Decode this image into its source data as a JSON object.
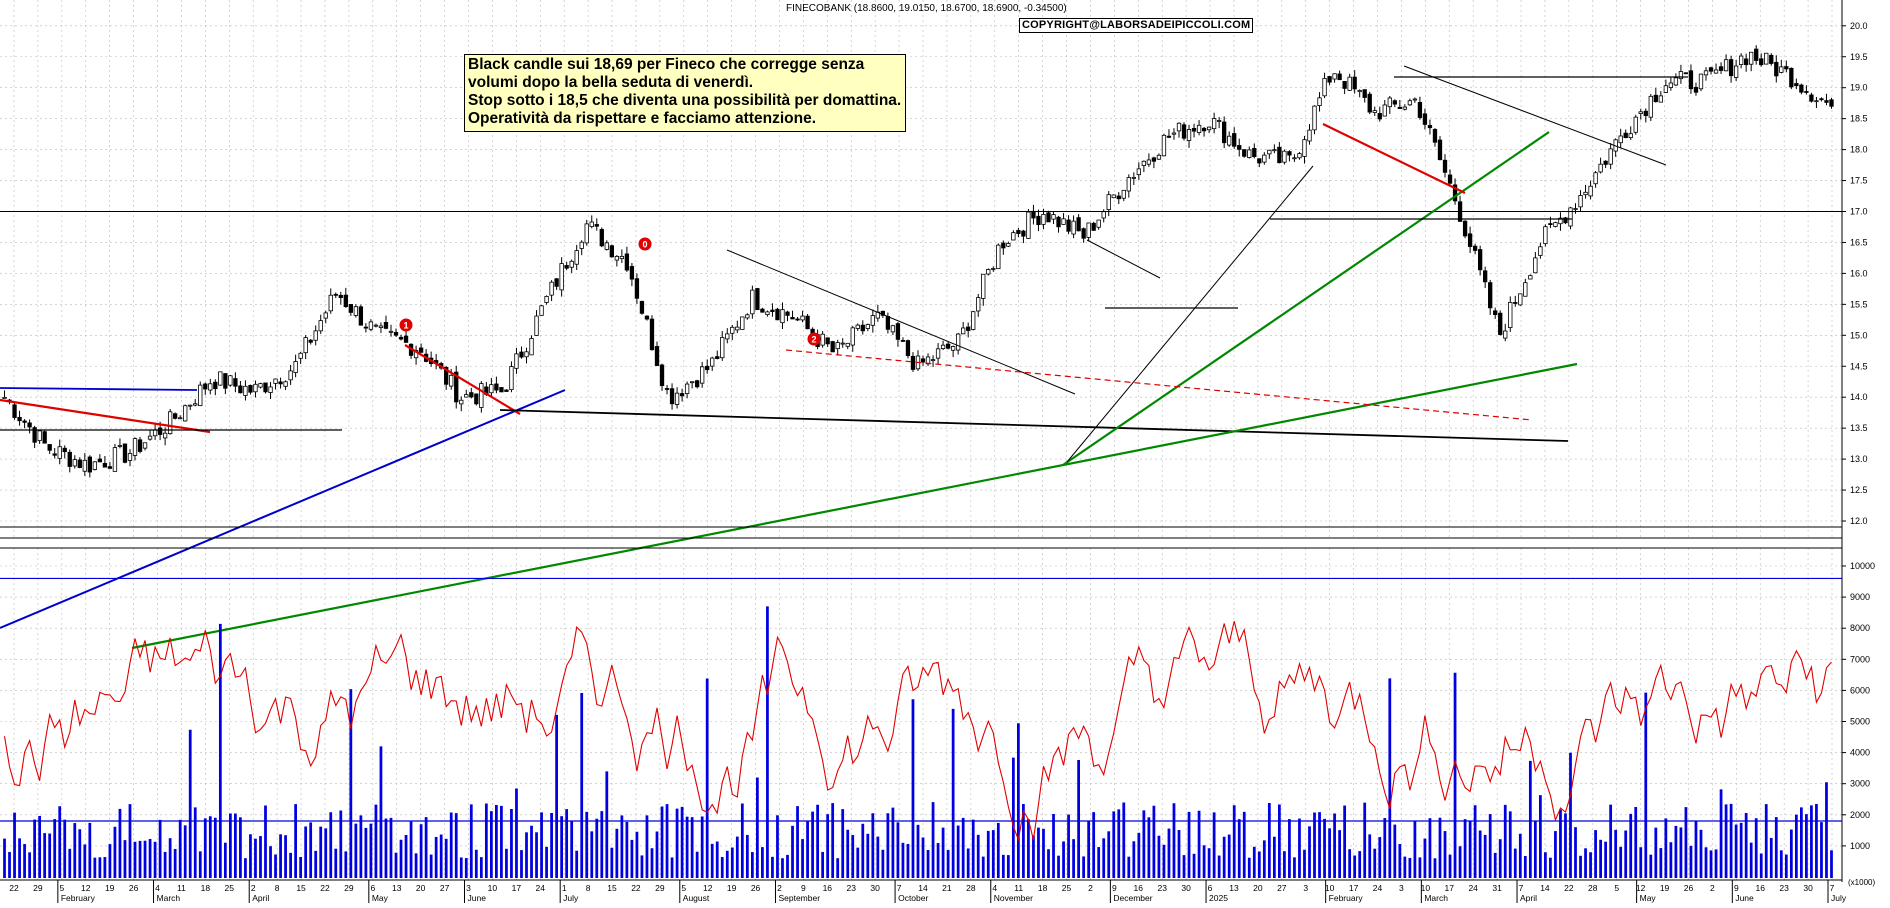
{
  "header": {
    "title": "FINECOBANK (18.8600, 19.0150, 18.6700, 18.6900, -0.34500)",
    "copyright": "COPYRIGHT@LABORSADEIPICCOLI.COM"
  },
  "note": {
    "lines": [
      "Black candle sui 18,69 per Fineco che corregge senza",
      "volumi dopo la bella seduta di venerdì.",
      "Stop sotto i 18,5 che diventa una possibilità per domattina.",
      "Operatività da rispettare e facciamo attenzione."
    ]
  },
  "colors": {
    "candle": "#000000",
    "grid": "#bbbbbb",
    "trend_red": "#e00000",
    "trend_blue": "#0000cc",
    "trend_green": "#008800",
    "oscillator": "#e00000",
    "volume": "#0000e0"
  },
  "chart_data": [
    {
      "type": "candlestick",
      "symbol": "FINECOBANK",
      "last": {
        "open": 18.86,
        "high": 19.015,
        "low": 18.67,
        "close": 18.69,
        "change": -0.345
      },
      "y_ticks": [
        "12.0",
        "12.5",
        "13.0",
        "13.5",
        "14.0",
        "14.5",
        "15.0",
        "15.5",
        "16.0",
        "16.5",
        "17.0",
        "17.5",
        "18.0",
        "18.5",
        "19.0",
        "19.5",
        "20.0"
      ],
      "ylim": [
        11.75,
        20.2
      ],
      "grid": true,
      "horizontal_levels": [
        17.0
      ],
      "wave_labels": [
        {
          "label": "0",
          "price": 17.3,
          "near": "July 22"
        },
        {
          "label": "1",
          "price": 15.95,
          "near": "May 13"
        },
        {
          "label": "2",
          "price": 15.75,
          "near": "September 3"
        }
      ],
      "anchors": [
        {
          "date": "Jan 22 2024",
          "close": 14.0
        },
        {
          "date": "Feb 5",
          "close": 13.2
        },
        {
          "date": "Feb 19",
          "close": 12.9
        },
        {
          "date": "Mar 4",
          "close": 13.1
        },
        {
          "date": "Mar 25",
          "close": 13.6
        },
        {
          "date": "Apr 5",
          "close": 14.3
        },
        {
          "date": "Apr 15",
          "close": 14.1
        },
        {
          "date": "May 1",
          "close": 14.5
        },
        {
          "date": "May 15",
          "close": 15.7
        },
        {
          "date": "May 25",
          "close": 15.0
        },
        {
          "date": "Jun 5",
          "close": 14.8
        },
        {
          "date": "Jun 17",
          "close": 14.0
        },
        {
          "date": "Jul 5",
          "close": 14.1
        },
        {
          "date": "Jul 15",
          "close": 15.5
        },
        {
          "date": "Jul 22",
          "close": 16.8
        },
        {
          "date": "Aug 1",
          "close": 16.2
        },
        {
          "date": "Aug 5",
          "close": 14.0
        },
        {
          "date": "Aug 20",
          "close": 14.5
        },
        {
          "date": "Sep 5",
          "close": 15.6
        },
        {
          "date": "Sep 20",
          "close": 15.3
        },
        {
          "date": "Oct 10",
          "close": 14.7
        },
        {
          "date": "Oct 25",
          "close": 15.3
        },
        {
          "date": "Nov 12",
          "close": 14.5
        },
        {
          "date": "Nov 22",
          "close": 14.9
        },
        {
          "date": "Dec 5",
          "close": 16.5
        },
        {
          "date": "Dec 15",
          "close": 17.0
        },
        {
          "date": "Dec 25",
          "close": 16.6
        },
        {
          "date": "Jan 10 2025",
          "close": 17.5
        },
        {
          "date": "Jan 25",
          "close": 18.2
        },
        {
          "date": "Feb 5",
          "close": 18.5
        },
        {
          "date": "Feb 20",
          "close": 17.9
        },
        {
          "date": "Mar 1",
          "close": 17.8
        },
        {
          "date": "Mar 5",
          "close": 19.3
        },
        {
          "date": "Mar 15",
          "close": 18.6
        },
        {
          "date": "Mar 28",
          "close": 18.8
        },
        {
          "date": "Apr 3",
          "close": 17.1
        },
        {
          "date": "Apr 7",
          "close": 15.0
        },
        {
          "date": "Apr 10",
          "close": 16.5
        },
        {
          "date": "Apr 25",
          "close": 17.3
        },
        {
          "date": "May 10",
          "close": 18.3
        },
        {
          "date": "May 22",
          "close": 19.1
        },
        {
          "date": "Jun 5",
          "close": 19.1
        },
        {
          "date": "Jun 12",
          "close": 19.55
        },
        {
          "date": "Jun 20",
          "close": 19.2
        },
        {
          "date": "Jun 23 2025",
          "close": 18.69
        }
      ]
    },
    {
      "type": "line+bar",
      "name": "volume oscillator",
      "y_ticks": [
        "1000",
        "2000",
        "3000",
        "4000",
        "5000",
        "6000",
        "7000",
        "8000",
        "9000",
        "10000"
      ],
      "unit_label": "(x1000)",
      "ylim": [
        0,
        10800
      ],
      "reference_lines": [
        9600,
        1800
      ]
    }
  ],
  "x_axis": {
    "date_ticks": [
      "22",
      "29",
      "5",
      "12",
      "19",
      "26",
      "4",
      "11",
      "18",
      "25",
      "2",
      "8",
      "15",
      "22",
      "29",
      "6",
      "13",
      "20",
      "27",
      "3",
      "10",
      "17",
      "24",
      "1",
      "8",
      "15",
      "22",
      "29",
      "5",
      "12",
      "19",
      "26",
      "2",
      "9",
      "16",
      "23",
      "30",
      "7",
      "14",
      "21",
      "28",
      "4",
      "11",
      "18",
      "25",
      "2",
      "9",
      "16",
      "23",
      "30",
      "6",
      "13",
      "20",
      "27",
      "3",
      "10",
      "17",
      "24",
      "3",
      "10",
      "17",
      "24",
      "31",
      "7",
      "14",
      "22",
      "28",
      "5",
      "12",
      "19",
      "26",
      "2",
      "9",
      "16",
      "23",
      "30",
      "7"
    ],
    "month_labels": [
      "February",
      "March",
      "April",
      "May",
      "June",
      "July",
      "August",
      "September",
      "October",
      "November",
      "December",
      "2025",
      "February",
      "March",
      "April",
      "May",
      "June",
      "July"
    ]
  }
}
